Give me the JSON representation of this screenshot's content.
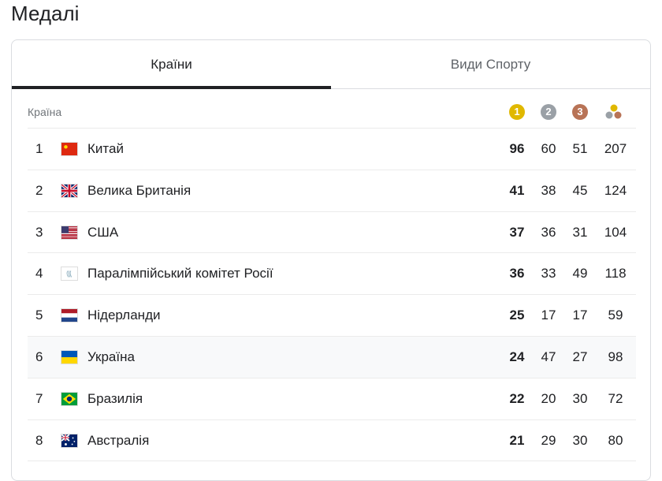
{
  "title": "Медалі",
  "tabs": [
    {
      "label": "Країни",
      "active": true
    },
    {
      "label": "Види Спорту",
      "active": false
    }
  ],
  "header": {
    "country": "Країна",
    "gold": "1",
    "silver": "2",
    "bronze": "3",
    "total_icon": "medals-total-icon"
  },
  "colors": {
    "gold": "#e0b800",
    "silver": "#9aa0a6",
    "bronze": "#b87356"
  },
  "rows": [
    {
      "rank": "1",
      "name": "Китай",
      "flag": "china",
      "gold": "96",
      "silver": "60",
      "bronze": "51",
      "total": "207"
    },
    {
      "rank": "2",
      "name": "Велика Британія",
      "flag": "uk",
      "gold": "41",
      "silver": "38",
      "bronze": "45",
      "total": "124"
    },
    {
      "rank": "3",
      "name": "США",
      "flag": "usa",
      "gold": "37",
      "silver": "36",
      "bronze": "31",
      "total": "104"
    },
    {
      "rank": "4",
      "name": "Паралімпійський комітет Росії",
      "flag": "rpc",
      "gold": "36",
      "silver": "33",
      "bronze": "49",
      "total": "118"
    },
    {
      "rank": "5",
      "name": "Нідерланди",
      "flag": "netherlands",
      "gold": "25",
      "silver": "17",
      "bronze": "17",
      "total": "59"
    },
    {
      "rank": "6",
      "name": "Україна",
      "flag": "ukraine",
      "gold": "24",
      "silver": "47",
      "bronze": "27",
      "total": "98",
      "highlighted": true
    },
    {
      "rank": "7",
      "name": "Бразилія",
      "flag": "brazil",
      "gold": "22",
      "silver": "20",
      "bronze": "30",
      "total": "72"
    },
    {
      "rank": "8",
      "name": "Австралія",
      "flag": "australia",
      "gold": "21",
      "silver": "29",
      "bronze": "30",
      "total": "80"
    }
  ]
}
